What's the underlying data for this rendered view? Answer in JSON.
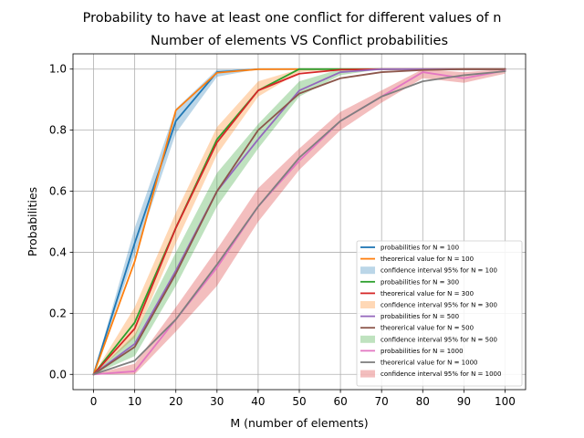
{
  "chart_data": {
    "type": "line",
    "title": "Probability to have at least one conflict for different values of n",
    "subtitle": "Number of elements VS Conflict probabilities",
    "xlabel": "M (number of elements)",
    "ylabel": "Probabilities",
    "x": [
      0,
      10,
      20,
      30,
      40,
      50,
      60,
      70,
      80,
      90,
      100
    ],
    "xticks": [
      "0",
      "10",
      "20",
      "30",
      "40",
      "50",
      "60",
      "70",
      "80",
      "90",
      "100"
    ],
    "yticks": [
      "0.0",
      "0.2",
      "0.4",
      "0.6",
      "0.8",
      "1.0"
    ],
    "xlim": [
      -5,
      105
    ],
    "ylim": [
      -0.05,
      1.05
    ],
    "grid": true,
    "legend_position": "lower-right",
    "series": [
      {
        "name": "probabilities for N = 100",
        "kind": "line",
        "color": "#1f77b4",
        "values": [
          0.0,
          0.43,
          0.83,
          0.99,
          1.0,
          1.0,
          1.0,
          1.0,
          1.0,
          1.0,
          1.0
        ]
      },
      {
        "name": "theorerical value for N = 100",
        "kind": "line",
        "color": "#ff7f0e",
        "values": [
          0.0,
          0.37,
          0.865,
          0.988,
          0.9996,
          1.0,
          1.0,
          1.0,
          1.0,
          1.0,
          1.0
        ]
      },
      {
        "name": "confidence interval 95% for N = 100",
        "kind": "band",
        "color": "#1f77b4",
        "lower": [
          0.0,
          0.39,
          0.79,
          0.975,
          1.0,
          1.0,
          1.0,
          1.0,
          1.0,
          1.0,
          1.0
        ],
        "upper": [
          0.0,
          0.48,
          0.87,
          0.998,
          1.0,
          1.0,
          1.0,
          1.0,
          1.0,
          1.0,
          1.0
        ]
      },
      {
        "name": "probabilities for N = 300",
        "kind": "line",
        "color": "#2ca02c",
        "values": [
          0.0,
          0.17,
          0.48,
          0.77,
          0.93,
          1.0,
          1.0,
          1.0,
          1.0,
          1.0,
          1.0
        ]
      },
      {
        "name": "theorerical value for N = 300",
        "kind": "line",
        "color": "#d62728",
        "values": [
          0.0,
          0.15,
          0.48,
          0.76,
          0.93,
          0.985,
          0.998,
          1.0,
          1.0,
          1.0,
          1.0
        ]
      },
      {
        "name": "confidence interval 95% for N = 300",
        "kind": "band",
        "color": "#ff7f0e",
        "lower": [
          0.0,
          0.12,
          0.43,
          0.72,
          0.91,
          0.99,
          1.0,
          1.0,
          1.0,
          1.0,
          1.0
        ],
        "upper": [
          0.0,
          0.22,
          0.53,
          0.81,
          0.96,
          1.0,
          1.0,
          1.0,
          1.0,
          1.0,
          1.0
        ]
      },
      {
        "name": "probabilities for N = 500",
        "kind": "line",
        "color": "#9467bd",
        "values": [
          0.0,
          0.1,
          0.34,
          0.6,
          0.77,
          0.93,
          0.99,
          1.0,
          1.0,
          1.0,
          1.0
        ]
      },
      {
        "name": "theorerical value for N = 500",
        "kind": "line",
        "color": "#8c564b",
        "values": [
          0.0,
          0.09,
          0.33,
          0.6,
          0.8,
          0.92,
          0.97,
          0.99,
          0.997,
          1.0,
          1.0
        ]
      },
      {
        "name": "confidence interval 95% for N = 500",
        "kind": "band",
        "color": "#2ca02c",
        "lower": [
          0.0,
          0.06,
          0.29,
          0.55,
          0.74,
          0.91,
          0.98,
          1.0,
          1.0,
          1.0,
          1.0
        ],
        "upper": [
          0.0,
          0.13,
          0.4,
          0.66,
          0.82,
          0.96,
          1.0,
          1.0,
          1.0,
          1.0,
          1.0
        ]
      },
      {
        "name": "probabilities for N = 1000",
        "kind": "line",
        "color": "#e377c2",
        "values": [
          0.0,
          0.01,
          0.18,
          0.35,
          0.55,
          0.7,
          0.83,
          0.91,
          0.99,
          0.97,
          0.995
        ]
      },
      {
        "name": "theorerical value for N = 1000",
        "kind": "line",
        "color": "#7f7f7f",
        "values": [
          0.0,
          0.045,
          0.18,
          0.36,
          0.55,
          0.71,
          0.83,
          0.91,
          0.96,
          0.98,
          0.993
        ]
      },
      {
        "name": "confidence interval 95% for N = 1000",
        "kind": "band",
        "color": "#d62728",
        "lower": [
          0.0,
          0.0,
          0.14,
          0.29,
          0.5,
          0.67,
          0.8,
          0.89,
          0.97,
          0.955,
          0.985
        ],
        "upper": [
          0.0,
          0.035,
          0.22,
          0.41,
          0.61,
          0.74,
          0.86,
          0.93,
          1.0,
          0.99,
          1.0
        ]
      }
    ]
  }
}
